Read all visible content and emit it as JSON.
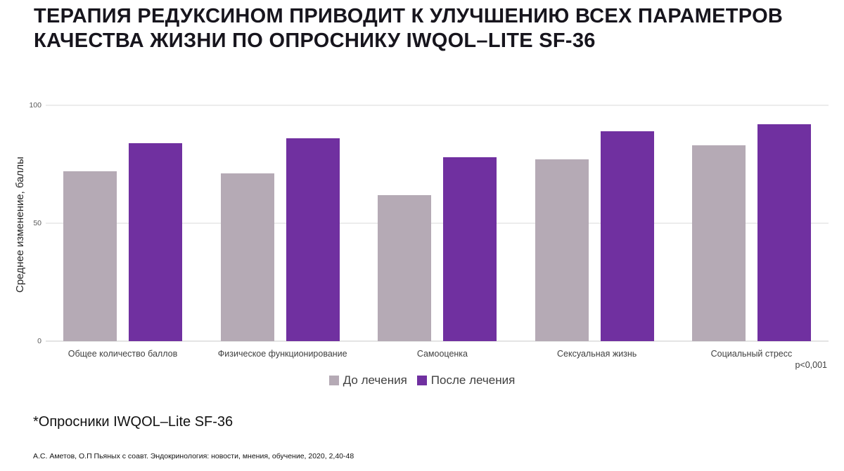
{
  "slide": {
    "title": "ТЕРАПИЯ РЕДУКСИНОМ ПРИВОДИТ К УЛУЧШЕНИЮ ВСЕХ ПАРАМЕТРОВ КАЧЕСТВА ЖИЗНИ ПО ОПРОСНИКУ IWQOL–LITE SF-36",
    "p_value": "p<0,001",
    "footnote": "*Опросники IWQOL–Lite SF-36",
    "reference": "А.С. Аметов, О.П Пьяных с соавт. Эндокринология: новости, мнения, обучение, 2020, 2,40-48"
  },
  "chart_data": {
    "type": "bar",
    "title": "",
    "xlabel": "",
    "ylabel": "Среднее изменение, баллы",
    "ylim": [
      0,
      100
    ],
    "yticks": [
      0,
      50,
      100
    ],
    "grid": true,
    "legend_position": "bottom",
    "categories": [
      "Общее количество баллов",
      "Физическое функционирование",
      "Самооценка",
      "Сексуальная жизнь",
      "Социальный стресс"
    ],
    "series": [
      {
        "name": "До лечения",
        "color": "#b5aab5",
        "values": [
          72,
          71,
          62,
          77,
          83
        ]
      },
      {
        "name": "После лечения",
        "color": "#7030a0",
        "values": [
          84,
          86,
          78,
          89,
          92
        ]
      }
    ]
  }
}
